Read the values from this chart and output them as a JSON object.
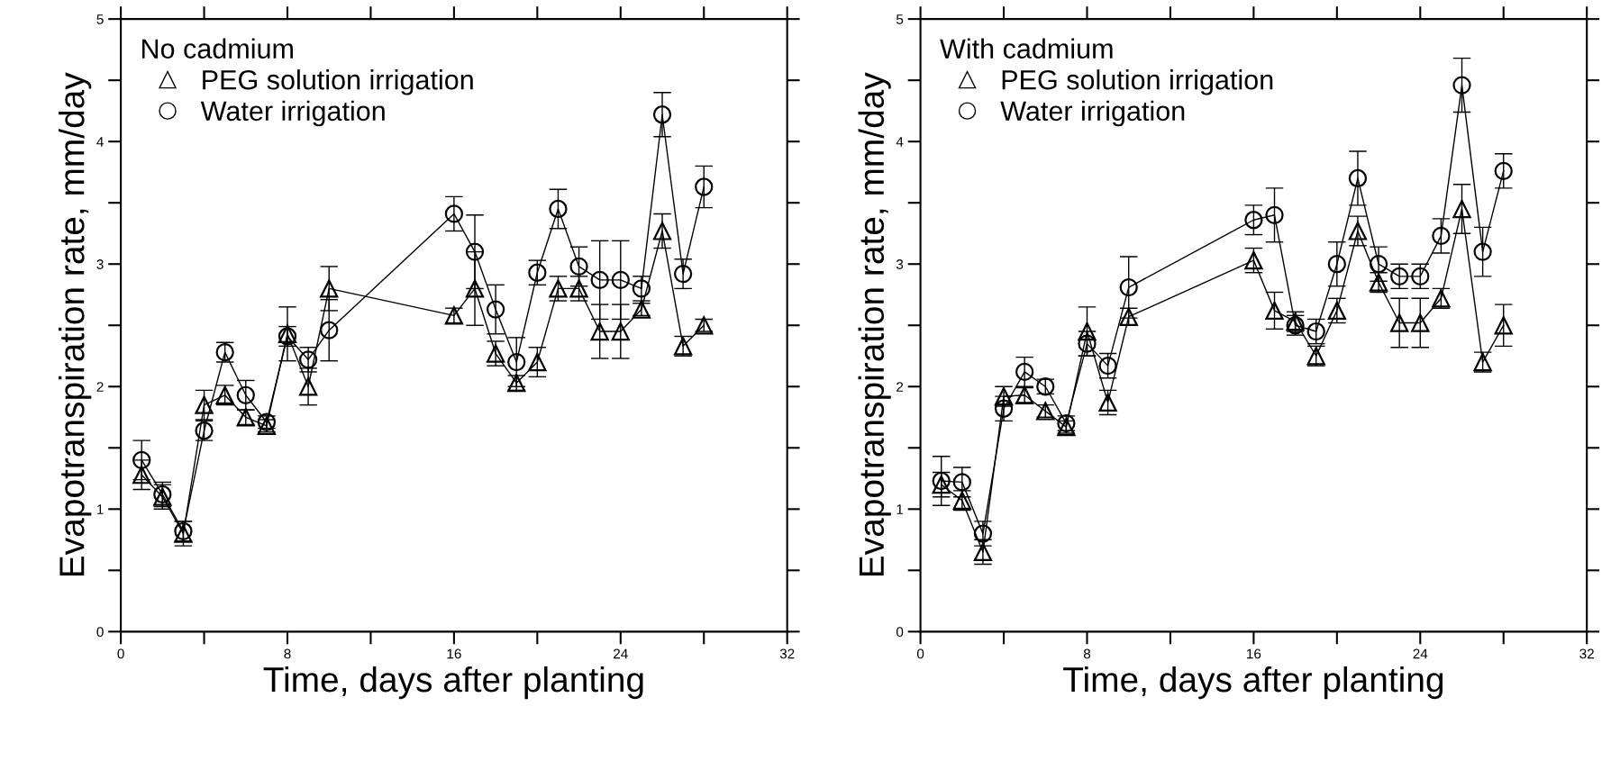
{
  "chart_data": [
    {
      "type": "line",
      "legend_title": "No cadmium",
      "xlabel": "Time, days after planting",
      "ylabel": "Evapotranspiration rate, mm/day",
      "legend": "top left",
      "grid": false,
      "xlim": [
        0,
        32
      ],
      "ylim": [
        0,
        5
      ],
      "xticks": [
        0,
        {
          "value": 4,
          "label": null
        },
        8,
        {
          "value": 12,
          "label": null
        },
        16,
        {
          "value": 20,
          "label": null
        },
        24,
        {
          "value": 28,
          "label": null
        },
        32
      ],
      "yticks": [
        0,
        {
          "value": 0.5,
          "label": null
        },
        1,
        {
          "value": 1.5,
          "label": null
        },
        2,
        {
          "value": 2.5,
          "label": null
        },
        3,
        {
          "value": 3.5,
          "label": null
        },
        4,
        {
          "value": 4.5,
          "label": null
        },
        5
      ],
      "x": [
        1,
        2,
        3,
        4,
        5,
        6,
        7,
        8,
        9,
        10,
        16,
        17,
        18,
        19,
        20,
        21,
        22,
        23,
        24,
        25,
        26,
        27,
        28
      ],
      "series": [
        {
          "name": "PEG solution irrigation",
          "color": "#000000",
          "marker": "triangle",
          "values": [
            1.28,
            1.1,
            0.8,
            1.85,
            1.93,
            1.75,
            1.68,
            2.43,
            2.0,
            2.8,
            2.58,
            2.8,
            2.27,
            2.03,
            2.2,
            2.8,
            2.8,
            2.45,
            2.45,
            2.63,
            3.27,
            2.33,
            2.5
          ],
          "errors": [
            0.12,
            0.1,
            0.1,
            0.12,
            0.08,
            0.06,
            0.05,
            0.22,
            0.15,
            0.18,
            0.06,
            0.3,
            0.1,
            0.06,
            0.12,
            0.1,
            0.1,
            0.22,
            0.22,
            0.05,
            0.14,
            0.08,
            0.05
          ]
        },
        {
          "name": "Water irrigation",
          "color": "#000000",
          "marker": "circle",
          "values": [
            1.4,
            1.12,
            0.82,
            1.64,
            2.28,
            1.93,
            1.71,
            2.41,
            2.22,
            2.46,
            3.41,
            3.1,
            2.63,
            2.2,
            2.93,
            3.45,
            2.98,
            2.87,
            2.87,
            2.8,
            4.22,
            2.92,
            3.63
          ],
          "errors": [
            0.16,
            0.1,
            0.08,
            0.08,
            0.08,
            0.12,
            0.05,
            0.08,
            0.1,
            0.25,
            0.14,
            0.3,
            0.2,
            0.2,
            0.1,
            0.16,
            0.16,
            0.32,
            0.32,
            0.1,
            0.18,
            0.12,
            0.17
          ]
        }
      ]
    },
    {
      "type": "line",
      "legend_title": "With cadmium",
      "xlabel": "Time, days after planting",
      "ylabel": "Evapotranspiration rate, mm/day",
      "legend": "top left",
      "grid": false,
      "xlim": [
        0,
        32
      ],
      "ylim": [
        0,
        5
      ],
      "xticks": [
        0,
        {
          "value": 4,
          "label": null
        },
        8,
        {
          "value": 12,
          "label": null
        },
        16,
        {
          "value": 20,
          "label": null
        },
        24,
        {
          "value": 28,
          "label": null
        },
        32
      ],
      "yticks": [
        0,
        {
          "value": 0.5,
          "label": null
        },
        1,
        {
          "value": 1.5,
          "label": null
        },
        2,
        {
          "value": 2.5,
          "label": null
        },
        3,
        {
          "value": 3.5,
          "label": null
        },
        4,
        {
          "value": 4.5,
          "label": null
        },
        5
      ],
      "x": [
        1,
        2,
        3,
        4,
        5,
        6,
        7,
        8,
        9,
        10,
        16,
        17,
        18,
        19,
        20,
        21,
        22,
        23,
        24,
        25,
        26,
        27,
        28
      ],
      "series": [
        {
          "name": "PEG solution irrigation",
          "color": "#000000",
          "marker": "triangle",
          "values": [
            1.2,
            1.07,
            0.65,
            1.92,
            1.93,
            1.8,
            1.67,
            2.45,
            1.87,
            2.57,
            3.03,
            2.62,
            2.53,
            2.25,
            2.62,
            3.27,
            2.85,
            2.52,
            2.52,
            2.72,
            3.45,
            2.2,
            2.5
          ],
          "errors": [
            0.1,
            0.08,
            0.1,
            0.08,
            0.06,
            0.05,
            0.05,
            0.2,
            0.1,
            0.07,
            0.1,
            0.15,
            0.08,
            0.08,
            0.1,
            0.12,
            0.08,
            0.2,
            0.2,
            0.08,
            0.2,
            0.08,
            0.17
          ]
        },
        {
          "name": "Water irrigation",
          "color": "#000000",
          "marker": "circle",
          "values": [
            1.23,
            1.22,
            0.8,
            1.82,
            2.12,
            2.0,
            1.7,
            2.35,
            2.17,
            2.81,
            3.36,
            3.4,
            2.5,
            2.45,
            3.0,
            3.7,
            3.0,
            2.9,
            2.9,
            3.23,
            4.46,
            3.1,
            3.76
          ],
          "errors": [
            0.2,
            0.12,
            0.1,
            0.1,
            0.12,
            0.06,
            0.06,
            0.1,
            0.1,
            0.25,
            0.12,
            0.22,
            0.08,
            0.1,
            0.18,
            0.22,
            0.14,
            0.1,
            0.1,
            0.14,
            0.22,
            0.2,
            0.14
          ]
        }
      ]
    }
  ]
}
